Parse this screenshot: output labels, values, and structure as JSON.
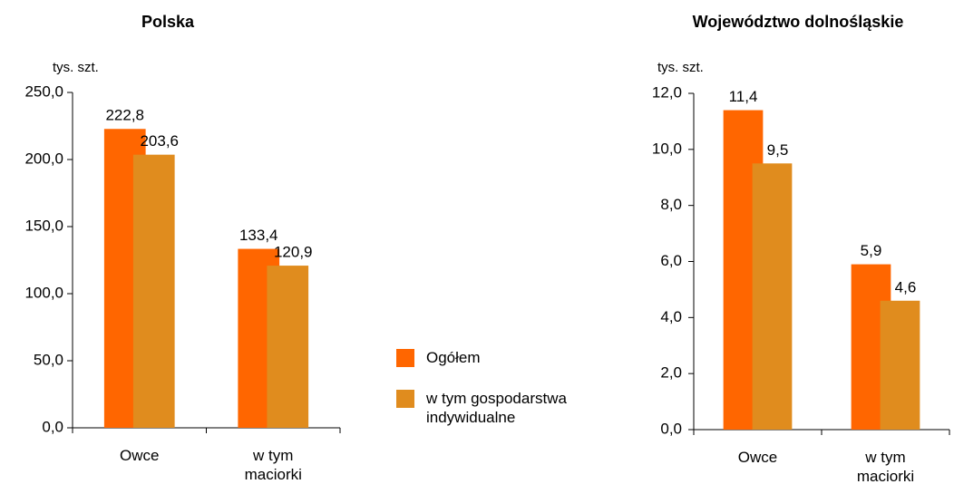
{
  "chart_data": [
    {
      "type": "bar",
      "title": "Polska",
      "y_label": "tys. szt.",
      "categories": [
        "Owce",
        "w tym maciorki"
      ],
      "series": [
        {
          "name": "Ogółem",
          "color": "#ff6600",
          "values": [
            222.8,
            133.4
          ],
          "value_labels": [
            "222,8",
            "133,4"
          ]
        },
        {
          "name": "w tym gospodarstwa indywidualne",
          "color": "#e08c1e",
          "values": [
            203.6,
            120.9
          ],
          "value_labels": [
            "203,6",
            "120,9"
          ]
        }
      ],
      "ylim": [
        0,
        250
      ],
      "yticks": [
        {
          "value": 0,
          "label": "0,0"
        },
        {
          "value": 50,
          "label": "50,0"
        },
        {
          "value": 100,
          "label": "100,0"
        },
        {
          "value": 150,
          "label": "150,0"
        },
        {
          "value": 200,
          "label": "200,0"
        },
        {
          "value": 250,
          "label": "250,0"
        }
      ]
    },
    {
      "type": "bar",
      "title": "Województwo dolnośląskie",
      "y_label": "tys. szt.",
      "categories": [
        "Owce",
        "w tym maciorki"
      ],
      "series": [
        {
          "color": "#ff6600",
          "values": [
            11.4,
            5.9
          ],
          "value_labels": [
            "11,4",
            "5,9"
          ]
        },
        {
          "color": "#e08c1e",
          "values": [
            9.5,
            4.6
          ],
          "value_labels": [
            "9,5",
            "4,6"
          ]
        }
      ],
      "ylim": [
        0,
        12
      ],
      "yticks": [
        {
          "value": 0,
          "label": "0,0"
        },
        {
          "value": 2,
          "label": "2,0"
        },
        {
          "value": 4,
          "label": "4,0"
        },
        {
          "value": 6,
          "label": "6,0"
        },
        {
          "value": 8,
          "label": "8,0"
        },
        {
          "value": 10,
          "label": "10,0"
        },
        {
          "value": 12,
          "label": "12,0"
        }
      ]
    }
  ]
}
